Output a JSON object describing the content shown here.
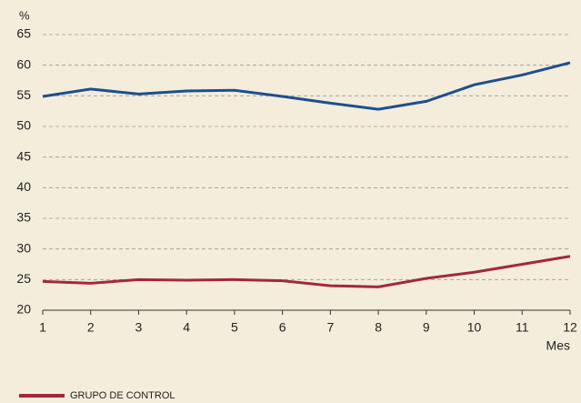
{
  "chart_data": {
    "type": "line",
    "y_label": "%",
    "x_label": "Mes",
    "x": [
      1,
      2,
      3,
      4,
      5,
      6,
      7,
      8,
      9,
      10,
      11,
      12
    ],
    "series": [
      {
        "color": "#1d4f8f",
        "values": [
          54.9,
          56.1,
          55.3,
          55.8,
          55.9,
          54.9,
          53.8,
          52.8,
          54.1,
          56.8,
          58.4,
          60.4
        ]
      },
      {
        "name": "GRUPO DE CONTROL",
        "color": "#a3283c",
        "values": [
          24.7,
          24.4,
          25.0,
          24.9,
          25.0,
          24.8,
          24.0,
          23.8,
          25.2,
          26.2,
          27.5,
          28.8
        ]
      }
    ],
    "xlim": [
      1,
      12
    ],
    "xticks": [
      1,
      2,
      3,
      4,
      5,
      6,
      7,
      8,
      9,
      10,
      11,
      12
    ],
    "ylim": [
      20,
      65
    ],
    "yticks": [
      20,
      25,
      30,
      35,
      40,
      45,
      50,
      55,
      60,
      65
    ],
    "grid": true,
    "legend": "bottom-left",
    "background": "#f5eddc"
  }
}
